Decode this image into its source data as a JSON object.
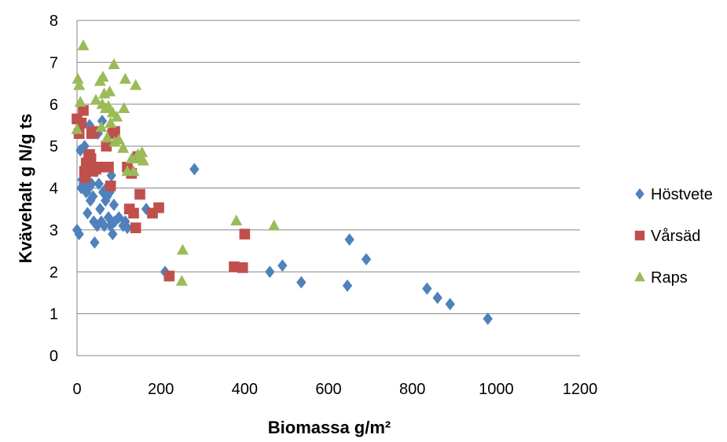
{
  "chart_data": {
    "type": "scatter",
    "xlabel": "Biomassa g/m²",
    "ylabel": "Kvävehalt g N/g ts",
    "xlim": [
      0,
      1200
    ],
    "ylim": [
      0,
      8
    ],
    "xticks": [
      0,
      200,
      400,
      600,
      800,
      1000,
      1200
    ],
    "yticks": [
      0,
      1,
      2,
      3,
      4,
      5,
      6,
      7,
      8
    ],
    "grid": "horizontal",
    "legend_position": "right",
    "series": [
      {
        "name": "Höstvete",
        "marker": "diamond",
        "color": "#4f81bd",
        "points": [
          [
            0,
            3.0
          ],
          [
            5,
            2.9
          ],
          [
            8,
            4.9
          ],
          [
            10,
            4.0
          ],
          [
            12,
            4.2
          ],
          [
            15,
            4.1
          ],
          [
            18,
            5.0
          ],
          [
            20,
            4.2
          ],
          [
            22,
            3.9
          ],
          [
            25,
            3.4
          ],
          [
            28,
            4.0
          ],
          [
            30,
            5.5
          ],
          [
            32,
            3.7
          ],
          [
            35,
            4.1
          ],
          [
            38,
            3.8
          ],
          [
            40,
            3.2
          ],
          [
            42,
            2.7
          ],
          [
            45,
            4.4
          ],
          [
            48,
            3.1
          ],
          [
            50,
            5.3
          ],
          [
            52,
            4.1
          ],
          [
            55,
            3.5
          ],
          [
            58,
            3.2
          ],
          [
            60,
            5.6
          ],
          [
            62,
            3.9
          ],
          [
            65,
            3.1
          ],
          [
            68,
            3.7
          ],
          [
            70,
            4.0
          ],
          [
            72,
            3.8
          ],
          [
            75,
            3.3
          ],
          [
            78,
            3.9
          ],
          [
            80,
            3.1
          ],
          [
            82,
            4.3
          ],
          [
            85,
            2.9
          ],
          [
            88,
            3.6
          ],
          [
            90,
            3.2
          ],
          [
            100,
            3.3
          ],
          [
            110,
            3.1
          ],
          [
            115,
            3.2
          ],
          [
            120,
            3.05
          ],
          [
            165,
            3.5
          ],
          [
            210,
            2.0
          ],
          [
            280,
            4.45
          ],
          [
            460,
            2.0
          ],
          [
            490,
            2.15
          ],
          [
            535,
            1.75
          ],
          [
            645,
            1.67
          ],
          [
            650,
            2.77
          ],
          [
            690,
            2.3
          ],
          [
            835,
            1.6
          ],
          [
            860,
            1.38
          ],
          [
            890,
            1.23
          ],
          [
            980,
            0.88
          ]
        ]
      },
      {
        "name": "Vårsäd",
        "marker": "square",
        "color": "#c0504d",
        "points": [
          [
            0,
            5.65
          ],
          [
            5,
            5.3
          ],
          [
            10,
            5.55
          ],
          [
            15,
            5.85
          ],
          [
            18,
            4.4
          ],
          [
            20,
            4.25
          ],
          [
            22,
            4.6
          ],
          [
            25,
            4.45
          ],
          [
            28,
            4.75
          ],
          [
            30,
            4.8
          ],
          [
            33,
            4.7
          ],
          [
            35,
            5.3
          ],
          [
            38,
            4.4
          ],
          [
            40,
            5.35
          ],
          [
            45,
            4.45
          ],
          [
            50,
            4.5
          ],
          [
            70,
            5.0
          ],
          [
            75,
            4.5
          ],
          [
            80,
            4.05
          ],
          [
            85,
            5.3
          ],
          [
            90,
            5.35
          ],
          [
            120,
            4.5
          ],
          [
            125,
            3.5
          ],
          [
            130,
            4.35
          ],
          [
            135,
            3.4
          ],
          [
            140,
            3.05
          ],
          [
            145,
            4.75
          ],
          [
            150,
            3.85
          ],
          [
            180,
            3.4
          ],
          [
            195,
            3.53
          ],
          [
            220,
            1.9
          ],
          [
            375,
            2.12
          ],
          [
            395,
            2.1
          ],
          [
            400,
            2.9
          ]
        ]
      },
      {
        "name": "Raps",
        "marker": "triangle",
        "color": "#9bbb59",
        "points": [
          [
            0,
            5.4
          ],
          [
            2,
            6.6
          ],
          [
            5,
            6.45
          ],
          [
            8,
            6.05
          ],
          [
            15,
            7.4
          ],
          [
            45,
            6.1
          ],
          [
            55,
            6.55
          ],
          [
            58,
            5.45
          ],
          [
            60,
            6.0
          ],
          [
            62,
            6.65
          ],
          [
            65,
            6.25
          ],
          [
            68,
            5.9
          ],
          [
            72,
            5.2
          ],
          [
            75,
            5.95
          ],
          [
            78,
            6.3
          ],
          [
            80,
            5.55
          ],
          [
            85,
            5.8
          ],
          [
            88,
            6.95
          ],
          [
            90,
            5.1
          ],
          [
            95,
            5.7
          ],
          [
            100,
            5.15
          ],
          [
            110,
            4.95
          ],
          [
            112,
            5.9
          ],
          [
            115,
            6.6
          ],
          [
            120,
            4.4
          ],
          [
            130,
            4.7
          ],
          [
            135,
            4.4
          ],
          [
            140,
            6.45
          ],
          [
            145,
            4.8
          ],
          [
            150,
            4.7
          ],
          [
            155,
            4.85
          ],
          [
            158,
            4.65
          ],
          [
            250,
            1.78
          ],
          [
            252,
            2.52
          ],
          [
            380,
            3.22
          ],
          [
            470,
            3.1
          ]
        ]
      }
    ]
  }
}
